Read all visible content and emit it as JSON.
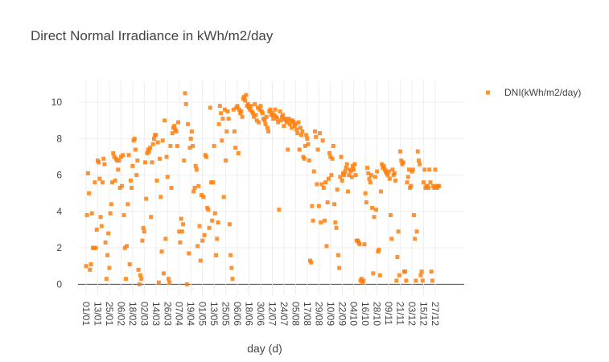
{
  "chart_data": {
    "type": "scatter",
    "title": "Direct Normal Irradiance in kWh/m2/day",
    "x_label": "day (d)",
    "categories": [
      "01/01",
      null,
      null,
      null,
      null,
      null,
      null,
      null,
      null,
      null,
      null,
      null,
      "13/01",
      null,
      null,
      null,
      null,
      null,
      null,
      null,
      null,
      null,
      null,
      null,
      "25/01",
      null,
      null,
      null,
      null,
      null,
      null,
      null,
      null,
      null,
      null,
      null,
      "06/02",
      null,
      null,
      null,
      null,
      null,
      null,
      null,
      null,
      null,
      null,
      null,
      "18/02",
      null,
      null,
      null,
      null,
      null,
      null,
      null,
      null,
      null,
      null,
      null,
      "02/03",
      null,
      null,
      null,
      null,
      null,
      null,
      null,
      null,
      null,
      null,
      null,
      "14/03",
      null,
      null,
      null,
      null,
      null,
      null,
      null,
      null,
      null,
      null,
      null,
      "26/03",
      null,
      null,
      null,
      null,
      null,
      null,
      null,
      null,
      null,
      null,
      null,
      "07/04",
      null,
      null,
      null,
      null,
      null,
      null,
      null,
      null,
      null,
      null,
      null,
      "19/04",
      null,
      null,
      null,
      null,
      null,
      null,
      null,
      null,
      null,
      null,
      null,
      "01/05",
      null,
      null,
      null,
      null,
      null,
      null,
      null,
      null,
      null,
      null,
      null,
      "13/05",
      null,
      null,
      null,
      null,
      null,
      null,
      null,
      null,
      null,
      null,
      null,
      "25/05",
      null,
      null,
      null,
      null,
      null,
      null,
      null,
      null,
      null,
      null,
      null,
      "06/06",
      null,
      null,
      null,
      null,
      null,
      null,
      null,
      null,
      null,
      null,
      null,
      "18/06",
      null,
      null,
      null,
      null,
      null,
      null,
      null,
      null,
      null,
      null,
      null,
      "30/06",
      null,
      null,
      null,
      null,
      null,
      null,
      null,
      null,
      null,
      null,
      null,
      "12/07",
      null,
      null,
      null,
      null,
      null,
      null,
      null,
      null,
      null,
      null,
      null,
      "24/07",
      null,
      null,
      null,
      null,
      null,
      null,
      null,
      null,
      null,
      null,
      null,
      "05/08",
      null,
      null,
      null,
      null,
      null,
      null,
      null,
      null,
      null,
      null,
      null,
      "17/08",
      null,
      null,
      null,
      null,
      null,
      null,
      null,
      null,
      null,
      null,
      null,
      "29/08",
      null,
      null,
      null,
      null,
      null,
      null,
      null,
      null,
      null,
      null,
      null,
      "10/09",
      null,
      null,
      null,
      null,
      null,
      null,
      null,
      null,
      null,
      null,
      null,
      "22/09",
      null,
      null,
      null,
      null,
      null,
      null,
      null,
      null,
      null,
      null,
      null,
      "04/10",
      null,
      null,
      null,
      null,
      null,
      null,
      null,
      null,
      null,
      null,
      null,
      "16/10",
      null,
      null,
      null,
      null,
      null,
      null,
      null,
      null,
      null,
      null,
      null,
      "28/10",
      null,
      null,
      null,
      null,
      null,
      null,
      null,
      null,
      null,
      null,
      null,
      "09/11",
      null,
      null,
      null,
      null,
      null,
      null,
      null,
      null,
      null,
      null,
      null,
      "21/11",
      null,
      null,
      null,
      null,
      null,
      null,
      null,
      null,
      null,
      null,
      null,
      "03/12",
      null,
      null,
      null,
      null,
      null,
      null,
      null,
      null,
      null,
      null,
      null,
      "15/12",
      null,
      null,
      null,
      null,
      null,
      null,
      null,
      null,
      null,
      null,
      null,
      "27/12",
      null,
      null,
      null,
      null
    ],
    "series": [
      {
        "name": "DNI(kWh/m2/day)",
        "color": "#ff7f0e",
        "values": [
          1.0,
          3.8,
          6.1,
          5.0,
          0.8,
          1.1,
          3.9,
          2.0,
          2.0,
          5.6,
          2.0,
          3.0,
          6.8,
          6.7,
          5.8,
          3.7,
          3.2,
          5.6,
          6.9,
          6.6,
          2.3,
          0.3,
          1.6,
          2.8,
          0.9,
          3.9,
          4.4,
          5.6,
          7.2,
          7.0,
          5.7,
          6.9,
          6.8,
          6.3,
          6.8,
          5.3,
          7.0,
          5.4,
          7.1,
          3.8,
          2.0,
          0.3,
          2.1,
          4.4,
          7.1,
          1.1,
          5.7,
          5.3,
          6.5,
          7.9,
          8.0,
          7.4,
          6.0,
          6.8,
          0.8,
          0.0,
          0.5,
          0.3,
          2.4,
          3.1,
          2.9,
          6.7,
          4.7,
          7.2,
          7.4,
          7.3,
          7.5,
          3.7,
          6.7,
          7.7,
          8.0,
          8.2,
          8.2,
          5.7,
          7.8,
          0.1,
          6.9,
          4.8,
          1.8,
          7.9,
          0.6,
          9.0,
          2.5,
          7.0,
          5.9,
          0.3,
          0.1,
          7.6,
          5.3,
          8.3,
          8.6,
          8.7,
          8.5,
          8.4,
          7.6,
          8.9,
          2.9,
          2.3,
          3.6,
          2.9,
          3.3,
          6.8,
          10.5,
          9.9,
          0.0,
          8.8,
          1.7,
          7.5,
          8.0,
          8.4,
          7.6,
          5.1,
          5.3,
          6.5,
          6.3,
          2.1,
          5.4,
          3.2,
          1.3,
          4.9,
          2.4,
          4.8,
          2.7,
          7.1,
          7.0,
          4.2,
          4.1,
          3.1,
          9.7,
          5.6,
          3.5,
          5.6,
          7.6,
          3.9,
          1.6,
          2.5,
          3.4,
          8.8,
          9.8,
          9.4,
          7.9,
          9.1,
          4.8,
          9.6,
          6.8,
          8.4,
          9.5,
          9.1,
          3.3,
          1.6,
          0.9,
          0.3,
          9.6,
          8.4,
          7.5,
          9.7,
          9.8,
          7.2,
          9.6,
          9.4,
          9.5,
          9.2,
          10.2,
          10.3,
          10.1,
          10.4,
          9.8,
          9.9,
          9.7,
          9.6,
          9.8,
          9.5,
          9.4,
          9.2,
          9.9,
          9.3,
          9.0,
          9.7,
          8.9,
          9.6,
          9.8,
          9.5,
          9.4,
          9.1,
          9.0,
          8.8,
          9.2,
          8.6,
          8.4,
          9.5,
          9.6,
          9.3,
          9.4,
          9.1,
          9.3,
          9.6,
          9.2,
          9.1,
          8.9,
          4.1,
          9.5,
          9.0,
          9.2,
          9.3,
          8.7,
          9.1,
          9.0,
          8.9,
          7.4,
          9.1,
          8.8,
          9.0,
          8.6,
          9.0,
          8.9,
          8.7,
          8.8,
          8.5,
          8.3,
          8.9,
          7.4,
          8.6,
          8.2,
          8.4,
          7.0,
          6.9,
          7.6,
          8.2,
          8.0,
          7.7,
          6.8,
          1.3,
          1.2,
          4.3,
          3.5,
          6.2,
          8.4,
          8.1,
          5.5,
          7.4,
          4.3,
          8.3,
          3.4,
          5.5,
          7.9,
          5.3,
          3.5,
          5.6,
          2.1,
          4.5,
          5.8,
          7.2,
          7.0,
          6.0,
          6.9,
          7.6,
          4.4,
          3.4,
          3.1,
          5.2,
          1.6,
          0.9,
          5.9,
          7.0,
          5.7,
          6.1,
          6.0,
          6.2,
          6.4,
          6.6,
          5.1,
          6.0,
          6.3,
          6.2,
          5.9,
          6.5,
          6.3,
          6.6,
          6.0,
          2.4,
          2.4,
          2.3,
          2.2,
          0.2,
          0.3,
          0.1,
          0.2,
          2.2,
          5.0,
          4.5,
          6.4,
          6.1,
          5.8,
          5.6,
          6.0,
          4.2,
          0.6,
          3.7,
          5.9,
          4.1,
          6.2,
          1.8,
          1.9,
          0.5,
          5.1,
          6.6,
          6.4,
          6.5,
          6.3,
          6.2,
          6.1,
          6.0,
          6.2,
          5.8,
          3.8,
          2.5,
          6.3,
          6.0,
          6.1,
          5.7,
          0.2,
          1.5,
          2.9,
          0.5,
          7.3,
          6.8,
          6.6,
          6.7,
          0.7,
          0.7,
          0.2,
          5.6,
          5.9,
          6.3,
          5.3,
          5.4,
          6.2,
          6.3,
          3.8,
          2.5,
          0.2,
          2.9,
          7.3,
          6.8,
          6.6,
          0.5,
          0.7,
          0.2,
          5.6,
          6.3,
          5.3,
          5.4,
          5.4,
          5.3,
          6.3,
          5.6,
          0.7,
          0.2,
          5.4,
          5.3,
          6.3,
          5.4,
          5.3,
          5.4,
          5.4
        ]
      }
    ],
    "ylim": [
      -0.6,
      11.2
    ],
    "yticks": [
      0,
      2,
      4,
      6,
      8,
      10
    ],
    "grid": true,
    "legend": "top-right"
  }
}
